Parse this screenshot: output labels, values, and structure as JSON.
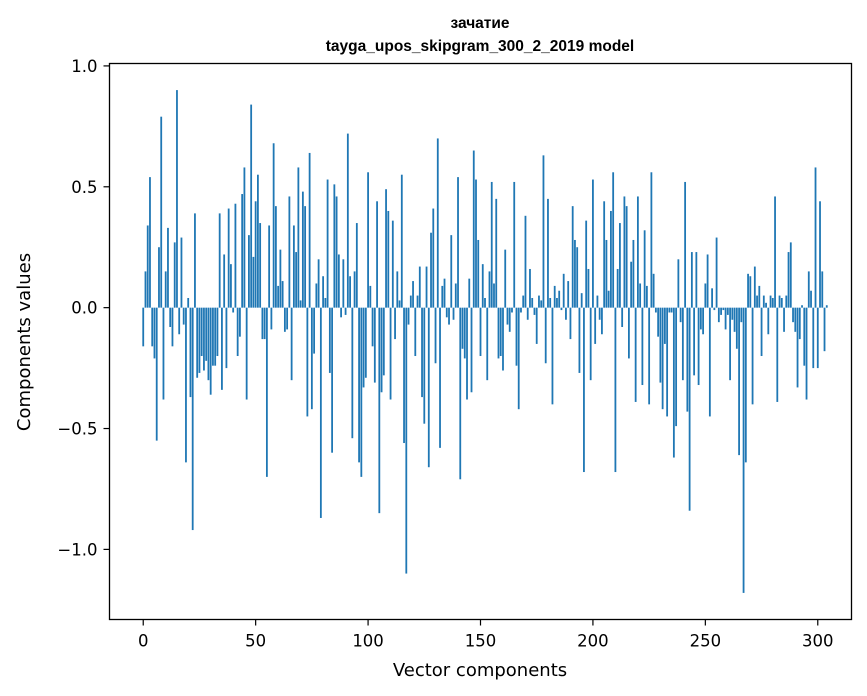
{
  "chart_data": {
    "type": "bar",
    "title": "зачатие",
    "subtitle": "tayga_upos_skipgram_300_2_2019 model",
    "xlabel": "Vector components",
    "ylabel": "Components values",
    "xlim": [
      -15,
      315
    ],
    "ylim": [
      -1.29,
      1.01
    ],
    "xticks": [
      0,
      50,
      100,
      150,
      200,
      250,
      300
    ],
    "xtick_labels": [
      "0",
      "50",
      "100",
      "150",
      "200",
      "250",
      "300"
    ],
    "yticks": [
      -1.0,
      -0.5,
      0.0,
      0.5,
      1.0
    ],
    "ytick_labels": [
      "−1.0",
      "−0.5",
      "0.0",
      "0.5",
      "1.0"
    ],
    "bar_color": "#1f77b4",
    "values": [
      -0.16,
      0.15,
      0.34,
      0.54,
      -0.16,
      -0.21,
      -0.55,
      0.25,
      0.79,
      -0.38,
      0.15,
      0.33,
      -0.08,
      -0.16,
      0.27,
      0.9,
      -0.11,
      0.29,
      -0.07,
      -0.64,
      0.04,
      -0.37,
      -0.92,
      0.39,
      -0.29,
      -0.27,
      -0.2,
      -0.26,
      -0.22,
      -0.3,
      -0.36,
      -0.24,
      -0.24,
      -0.2,
      0.39,
      -0.34,
      0.22,
      -0.25,
      0.41,
      0.18,
      -0.02,
      0.43,
      -0.2,
      -0.12,
      0.47,
      0.58,
      -0.38,
      0.3,
      0.84,
      0.21,
      0.44,
      0.55,
      0.35,
      -0.13,
      -0.13,
      -0.7,
      0.34,
      -0.09,
      0.68,
      0.42,
      0.09,
      0.24,
      0.11,
      -0.1,
      -0.09,
      0.46,
      -0.3,
      0.34,
      0.23,
      0.58,
      0.03,
      0.48,
      0.42,
      -0.45,
      0.64,
      -0.42,
      -0.19,
      0.1,
      0.2,
      -0.87,
      0.13,
      0.04,
      0.53,
      -0.27,
      -0.6,
      0.51,
      0.46,
      0.22,
      -0.04,
      0.2,
      -0.03,
      0.72,
      0.13,
      -0.54,
      0.15,
      0.35,
      -0.64,
      -0.7,
      -0.33,
      -0.29,
      0.56,
      0.09,
      -0.16,
      -0.31,
      0.44,
      -0.85,
      -0.35,
      -0.28,
      0.49,
      0.4,
      -0.38,
      0.36,
      -0.13,
      0.15,
      0.03,
      0.55,
      -0.56,
      -1.1,
      -0.07,
      0.05,
      0.11,
      -0.2,
      0.05,
      0.17,
      -0.37,
      -0.48,
      0.17,
      -0.66,
      0.31,
      0.41,
      -0.23,
      0.7,
      -0.58,
      0.09,
      0.12,
      -0.04,
      -0.07,
      0.3,
      -0.05,
      0.1,
      0.54,
      -0.71,
      -0.17,
      -0.21,
      -0.38,
      0.12,
      -0.35,
      0.65,
      0.53,
      0.28,
      -0.2,
      0.18,
      0.04,
      -0.3,
      0.15,
      0.52,
      0.1,
      0.45,
      -0.21,
      -0.2,
      -0.26,
      0.24,
      -0.07,
      -0.1,
      -0.02,
      0.52,
      -0.24,
      -0.42,
      -0.02,
      0.05,
      0.38,
      -0.05,
      0.16,
      0.04,
      -0.03,
      -0.15,
      0.05,
      0.03,
      0.63,
      -0.23,
      0.45,
      0.04,
      -0.4,
      0.09,
      0.04,
      0.07,
      -0.01,
      0.14,
      -0.05,
      0.11,
      -0.13,
      0.42,
      0.28,
      0.25,
      -0.27,
      0.06,
      -0.68,
      0.36,
      0.16,
      -0.3,
      0.53,
      -0.15,
      0.05,
      -0.05,
      -0.11,
      0.44,
      0.28,
      0.07,
      0.4,
      0.56,
      -0.68,
      0.16,
      0.35,
      -0.08,
      0.46,
      0.42,
      -0.21,
      0.19,
      0.28,
      -0.39,
      0.46,
      0.1,
      -0.32,
      0.32,
      0.09,
      -0.4,
      0.56,
      0.14,
      -0.02,
      -0.12,
      -0.31,
      -0.42,
      -0.15,
      -0.45,
      -0.02,
      -0.02,
      -0.62,
      -0.49,
      0.2,
      -0.06,
      -0.3,
      0.52,
      -0.43,
      -0.84,
      0.23,
      -0.28,
      0.23,
      -0.32,
      -0.09,
      -0.11,
      0.1,
      0.22,
      -0.45,
      0.08,
      -0.01,
      0.29,
      -0.06,
      -0.03,
      -0.01,
      -0.09,
      -0.03,
      -0.3,
      -0.05,
      -0.1,
      -0.17,
      -0.61,
      -0.06,
      -1.18,
      -0.64,
      0.14,
      0.13,
      -0.4,
      0.17,
      0.05,
      0.09,
      -0.2,
      0.05,
      0.02,
      -0.11,
      0.05,
      0.04,
      0.46,
      -0.39,
      0.05,
      0.04,
      -0.1,
      0.05,
      0.23,
      0.27,
      -0.06,
      -0.1,
      -0.33,
      -0.13,
      0.01,
      -0.24,
      -0.38,
      0.15,
      0.07,
      -0.25,
      0.58,
      -0.25,
      0.44,
      0.15,
      -0.18,
      0.01
    ]
  }
}
